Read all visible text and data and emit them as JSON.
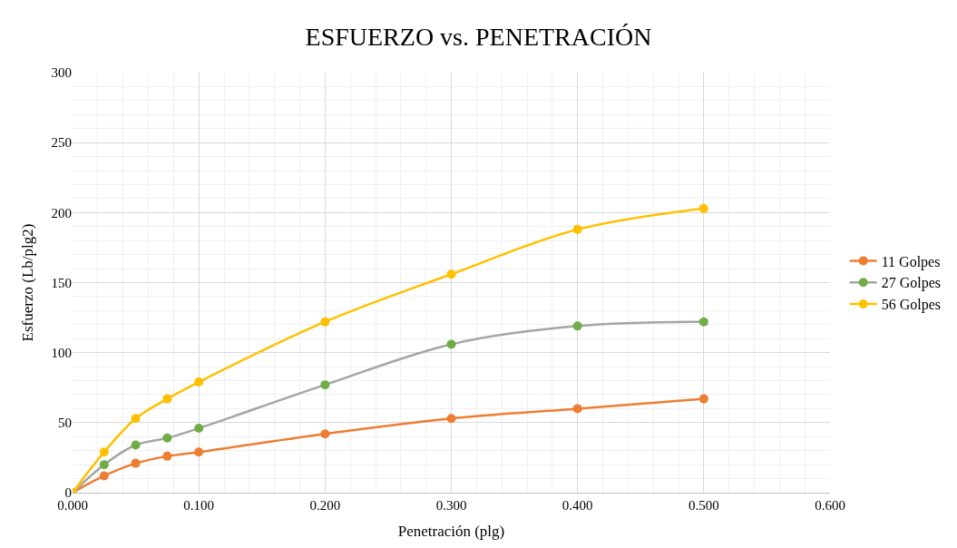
{
  "chart_data": {
    "type": "line",
    "title": "ESFUERZO vs. PENETRACIÓN",
    "xlabel": "Penetración (plg)",
    "ylabel": "Esfuerzo (Lb/plg2)",
    "x": [
      0,
      0.025,
      0.05,
      0.075,
      0.1,
      0.2,
      0.3,
      0.4,
      0.5
    ],
    "series": [
      {
        "name": "11 Golpes",
        "color": "#ed7d31",
        "values": [
          0,
          12,
          21,
          26,
          29,
          42,
          53,
          60,
          67
        ]
      },
      {
        "name": "27 Golpes",
        "color": "#a5a5a5",
        "colors": [
          "#70ad47",
          "#70ad47",
          "#70ad47",
          "#70ad47",
          "#70ad47",
          "#70ad47",
          "#70ad47",
          "#70ad47",
          "#70ad47"
        ],
        "values": [
          0,
          20,
          34,
          39,
          46,
          77,
          106,
          119,
          122
        ]
      },
      {
        "name": "56 Golpes",
        "color": "#ffc000",
        "values": [
          0,
          29,
          53,
          67,
          79,
          122,
          156,
          188,
          203
        ]
      }
    ],
    "xlim": [
      0,
      0.6
    ],
    "xticks": [
      {
        "value": 0,
        "label": "0.000"
      },
      {
        "value": 0.1,
        "label": "0.100"
      },
      {
        "value": 0.2,
        "label": "0.200"
      },
      {
        "value": 0.3,
        "label": "0.300"
      },
      {
        "value": 0.4,
        "label": "0.400"
      },
      {
        "value": 0.5,
        "label": "0.500"
      },
      {
        "value": 0.6,
        "label": "0.600"
      }
    ],
    "ylim": [
      0,
      300
    ],
    "yticks": [
      0,
      50,
      100,
      150,
      200,
      250,
      300
    ],
    "grid": true,
    "legend": "right",
    "marker": "circle",
    "line_style": "solid"
  }
}
